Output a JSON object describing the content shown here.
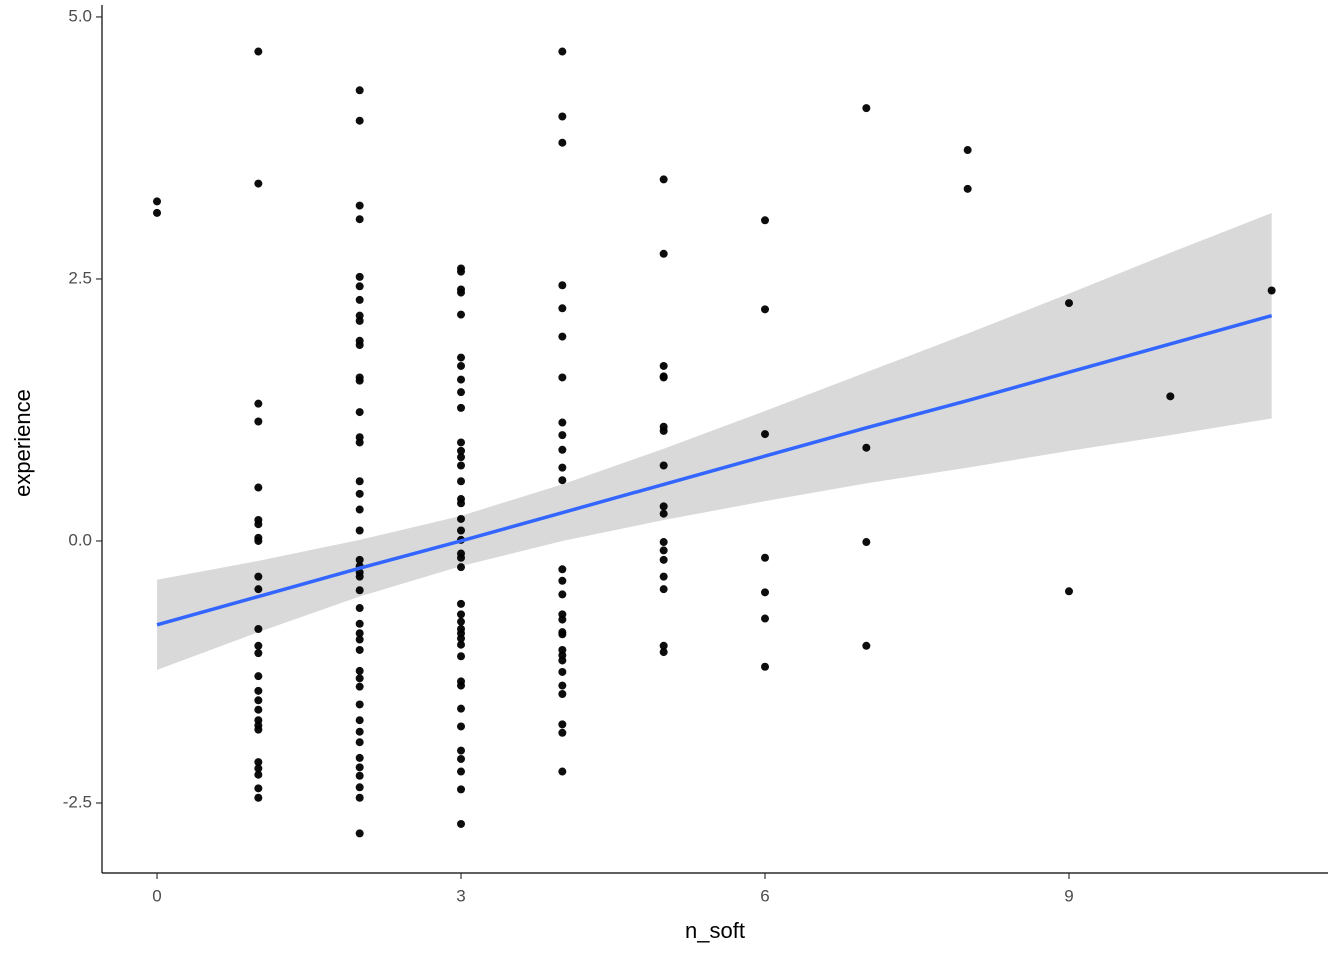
{
  "chart_data": {
    "type": "scatter",
    "x_label": "n_soft",
    "y_label": "experience",
    "xlim": [
      -0.543,
      11.556
    ],
    "ylim": [
      -3.168,
      5.114
    ],
    "xticks": [
      0,
      3,
      6,
      9
    ],
    "yticks": [
      -2.5,
      {
        "value": 0,
        "label": "0.0"
      },
      2.5,
      {
        "value": 5,
        "label": "5.0"
      }
    ],
    "grid": false,
    "points": {
      "color": "#000000",
      "x": [
        0,
        0,
        1,
        1,
        1,
        1,
        1,
        1,
        1,
        1,
        1,
        1,
        1,
        1,
        1,
        1,
        1,
        1,
        1,
        1,
        1,
        1,
        1,
        1,
        1,
        1,
        1,
        1,
        2,
        2,
        2,
        2,
        2,
        2,
        2,
        2,
        2,
        2,
        2,
        2,
        2,
        2,
        2,
        2,
        2,
        2,
        2,
        2,
        2,
        2,
        2,
        2,
        2,
        2,
        2,
        2,
        2,
        2,
        2,
        2,
        2,
        2,
        2,
        2,
        2,
        2,
        2,
        2,
        2,
        2,
        2,
        3,
        3,
        3,
        3,
        3,
        3,
        3,
        3,
        3,
        3,
        3,
        3,
        3,
        3,
        3,
        3,
        3,
        3,
        3,
        3,
        3,
        3,
        3,
        3,
        3,
        3,
        3,
        3,
        3,
        3,
        3,
        3,
        3,
        3,
        3,
        3,
        3,
        3,
        3,
        3,
        4,
        4,
        4,
        4,
        4,
        4,
        4,
        4,
        4,
        4,
        4,
        4,
        4,
        4,
        4,
        4,
        4,
        4,
        4,
        4,
        4,
        4,
        4,
        4,
        4,
        4,
        4,
        4,
        5,
        5,
        5,
        5,
        5,
        5,
        5,
        5,
        5,
        5,
        5,
        5,
        5,
        5,
        5,
        5,
        5,
        6,
        6,
        6,
        6,
        6,
        6,
        6,
        7,
        7,
        7,
        7,
        8,
        8,
        9,
        9,
        10,
        11
      ],
      "y": [
        3.24,
        3.13,
        4.67,
        3.41,
        1.31,
        1.14,
        0.51,
        0.2,
        0.16,
        0.03,
        0.0,
        -0.34,
        -0.46,
        -0.84,
        -1.0,
        -1.07,
        -1.29,
        -1.43,
        -1.52,
        -1.61,
        -1.71,
        -1.76,
        -1.8,
        -2.11,
        -2.17,
        -2.23,
        -2.36,
        -2.45,
        4.3,
        4.01,
        3.2,
        3.07,
        2.52,
        2.43,
        2.3,
        2.15,
        2.1,
        1.91,
        1.87,
        1.56,
        1.53,
        1.23,
        0.99,
        0.94,
        0.57,
        0.45,
        0.3,
        0.1,
        -0.18,
        -0.24,
        -0.3,
        -0.34,
        -0.47,
        -0.64,
        -0.79,
        -0.88,
        -0.94,
        -1.04,
        -1.24,
        -1.31,
        -1.39,
        -1.56,
        -1.71,
        -1.82,
        -1.92,
        -2.07,
        -2.16,
        -2.24,
        -2.35,
        -2.45,
        -2.79,
        2.6,
        2.57,
        2.4,
        2.37,
        2.16,
        1.75,
        1.67,
        1.54,
        1.42,
        1.27,
        0.94,
        0.86,
        0.8,
        0.72,
        0.57,
        0.4,
        0.36,
        0.21,
        0.1,
        0.01,
        -0.12,
        -0.16,
        -0.25,
        -0.6,
        -0.7,
        -0.77,
        -0.84,
        -0.88,
        -0.93,
        -0.99,
        -1.1,
        -1.34,
        -1.38,
        -1.6,
        -1.77,
        -2.0,
        -2.08,
        -2.2,
        -2.37,
        -2.7,
        4.67,
        4.05,
        3.8,
        2.44,
        2.22,
        1.95,
        1.56,
        1.13,
        1.01,
        0.87,
        0.7,
        0.58,
        -0.27,
        -0.38,
        -0.51,
        -0.7,
        -0.75,
        -0.87,
        -0.89,
        -1.04,
        -1.09,
        -1.14,
        -1.25,
        -1.38,
        -1.46,
        -1.75,
        -1.83,
        -2.2,
        3.45,
        2.74,
        1.67,
        1.57,
        1.56,
        1.09,
        1.05,
        0.72,
        0.33,
        0.26,
        -0.01,
        -0.09,
        -0.18,
        -0.34,
        -0.46,
        -1.0,
        -1.06,
        3.06,
        2.21,
        1.02,
        -0.16,
        -0.49,
        -0.74,
        -1.2,
        4.13,
        0.89,
        -0.01,
        -1.0,
        3.73,
        3.36,
        2.27,
        -0.48,
        1.38,
        2.39
      ]
    },
    "fit": {
      "color": "#3366ff",
      "band_color": "#d9d9d9",
      "x": [
        0,
        1,
        2,
        3,
        4,
        5,
        6,
        7,
        8,
        9,
        10,
        11
      ],
      "y": [
        -0.8,
        -0.53,
        -0.26,
        0.0,
        0.27,
        0.54,
        0.81,
        1.08,
        1.34,
        1.61,
        1.88,
        2.15
      ],
      "lower": [
        -1.23,
        -0.87,
        -0.53,
        -0.24,
        0.0,
        0.2,
        0.38,
        0.55,
        0.7,
        0.86,
        1.01,
        1.17
      ],
      "upper": [
        -0.37,
        -0.19,
        0.01,
        0.24,
        0.54,
        0.88,
        1.24,
        1.61,
        1.98,
        2.36,
        2.75,
        3.13
      ]
    }
  }
}
